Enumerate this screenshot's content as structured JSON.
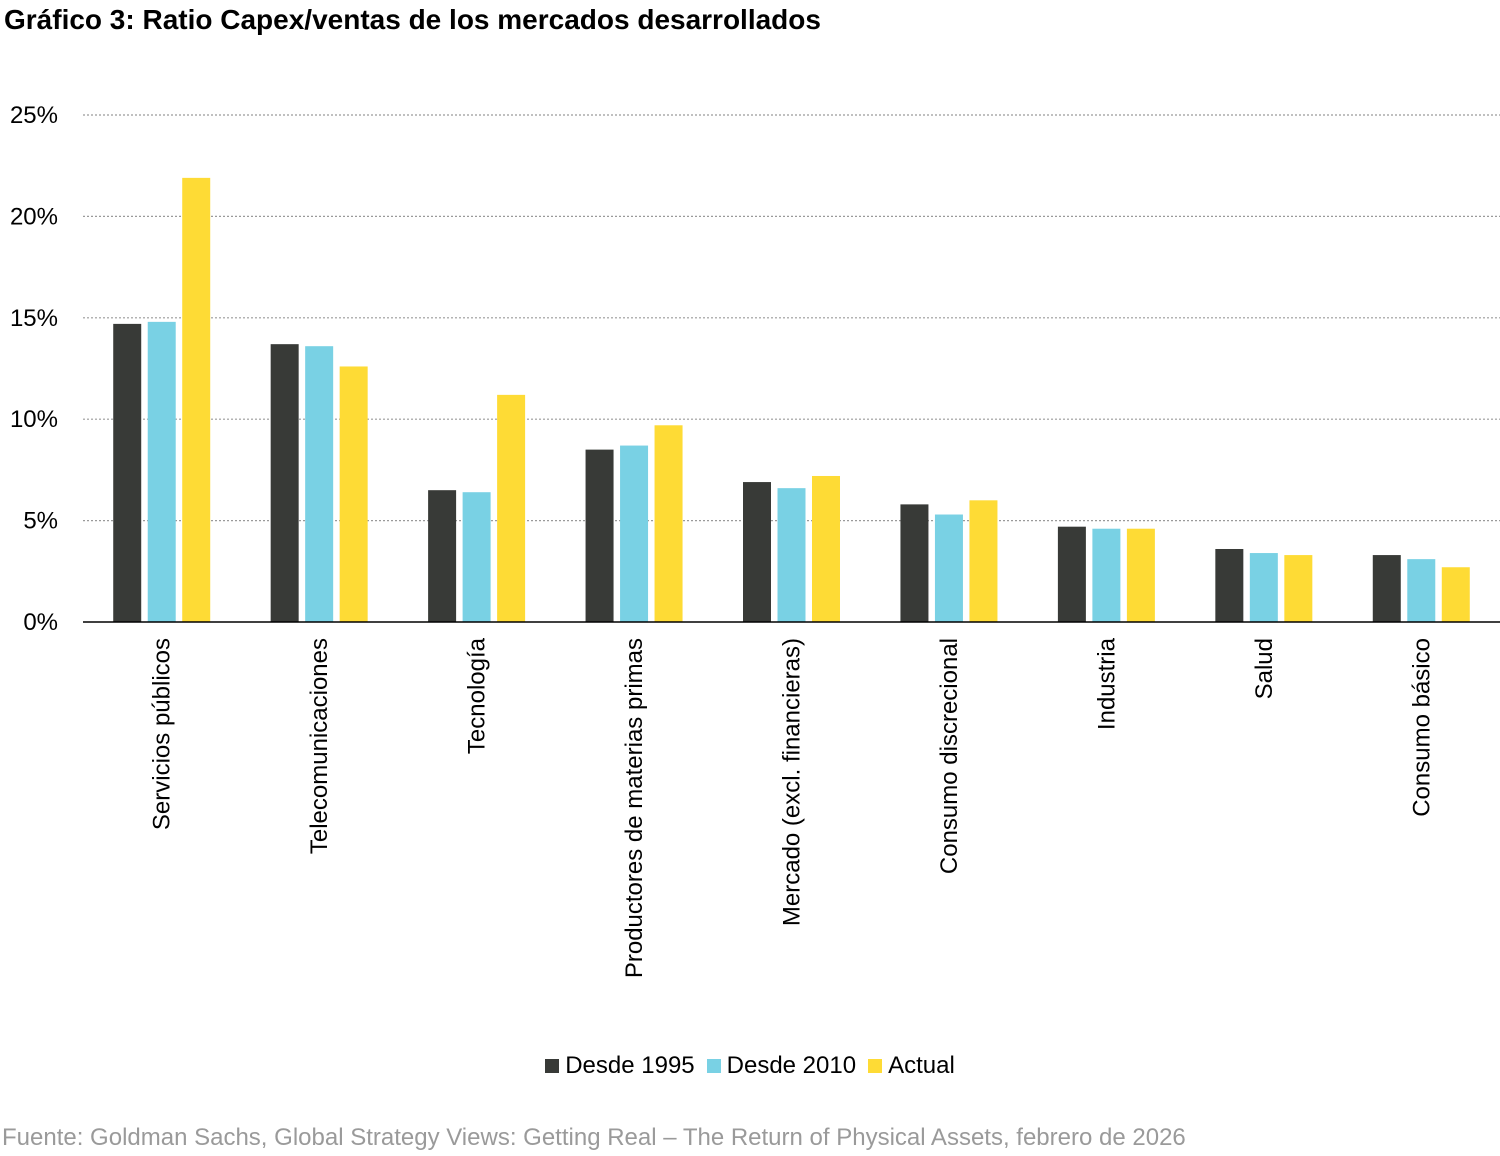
{
  "title": "Gráfico 3: Ratio Capex/ventas de los mercados desarrollados",
  "source": "Fuente: Goldman Sachs, Global Strategy Views: Getting Real – The Return of Physical Assets, febrero de 2026",
  "chart_data": {
    "type": "bar",
    "title": "Gráfico 3: Ratio Capex/ventas de los mercados desarrollados",
    "xlabel": "",
    "ylabel": "",
    "ylim": [
      0,
      25
    ],
    "yticks": [
      "0%",
      "5%",
      "10%",
      "15%",
      "20%",
      "25%"
    ],
    "grid": true,
    "legend_position": "bottom",
    "categories": [
      "Servicios públicos",
      "Telecomunicaciones",
      "Tecnología",
      "Productores de materias primas",
      "Mercado (excl. financieras)",
      "Consumo discrecional",
      "Industria",
      "Salud",
      "Consumo básico"
    ],
    "series": [
      {
        "name": "Desde 1995",
        "color": "#383a37",
        "values": [
          14.7,
          13.7,
          6.5,
          8.5,
          6.9,
          5.8,
          4.7,
          3.6,
          3.3
        ]
      },
      {
        "name": "Desde 2010",
        "color": "#79d1e4",
        "values": [
          14.8,
          13.6,
          6.4,
          8.7,
          6.6,
          5.3,
          4.6,
          3.4,
          3.1
        ]
      },
      {
        "name": "Actual",
        "color": "#fedb35",
        "values": [
          21.9,
          12.6,
          11.2,
          9.7,
          7.2,
          6.0,
          4.6,
          3.3,
          2.7
        ]
      }
    ]
  }
}
